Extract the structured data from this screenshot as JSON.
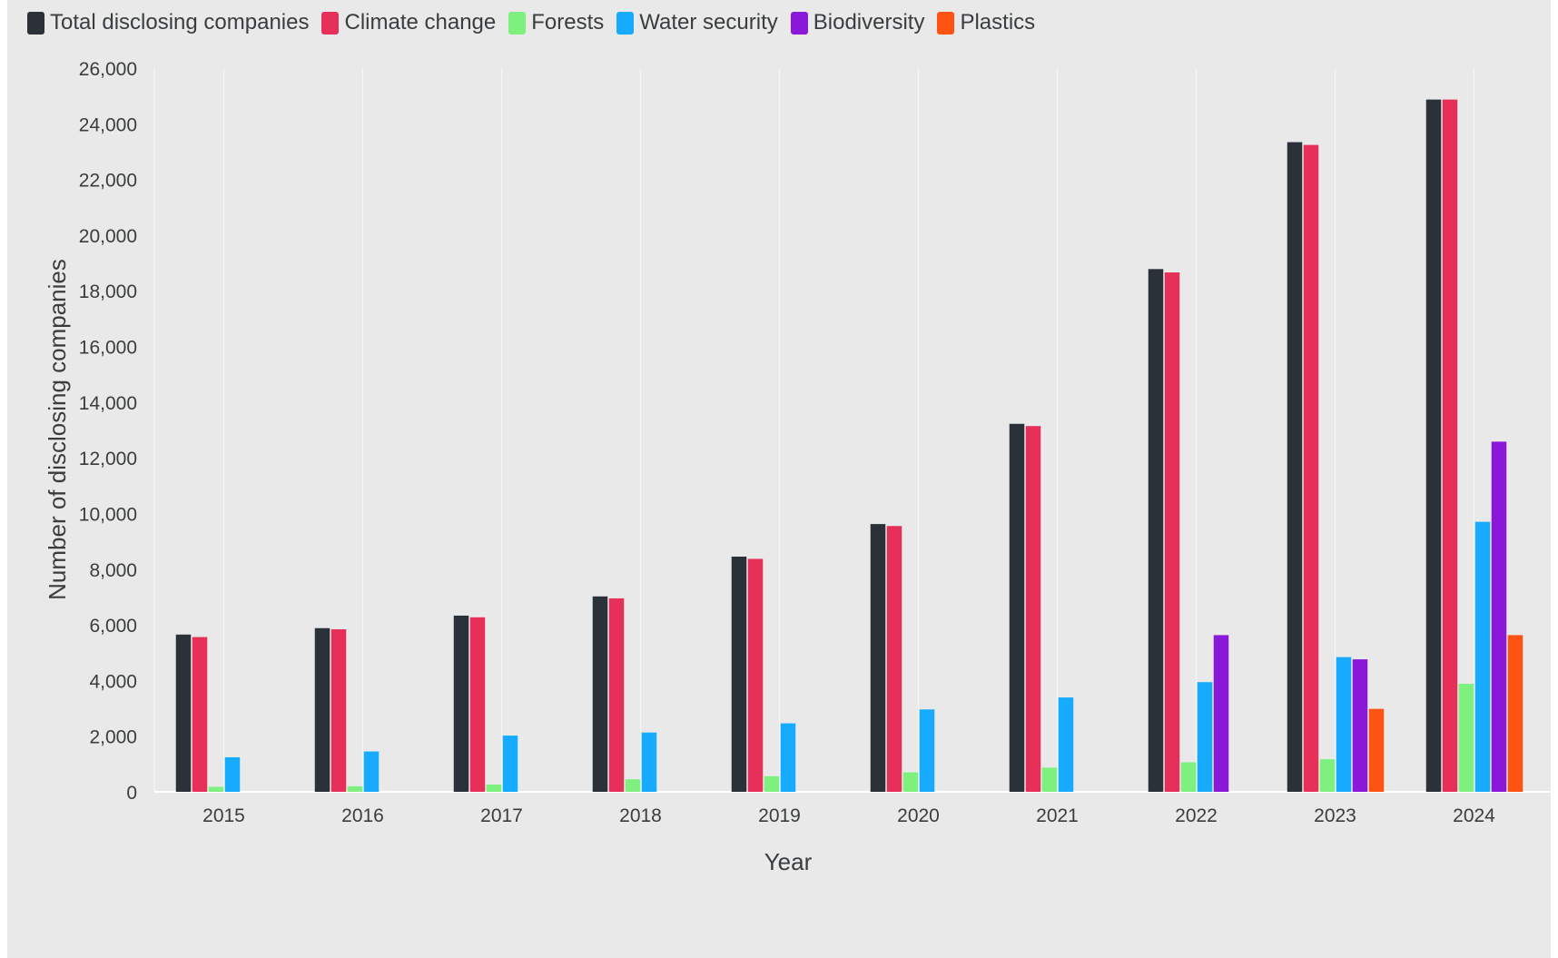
{
  "chart_data": {
    "type": "bar",
    "title": "",
    "xlabel": "Year",
    "ylabel": "Number of disclosing companies",
    "ylim": [
      0,
      26000
    ],
    "yticks": [
      0,
      2000,
      4000,
      6000,
      8000,
      10000,
      12000,
      14000,
      16000,
      18000,
      20000,
      22000,
      24000,
      26000
    ],
    "ytick_labels": [
      "0",
      "2,000",
      "4,000",
      "6,000",
      "8,000",
      "10,000",
      "12,000",
      "14,000",
      "16,000",
      "18,000",
      "20,000",
      "22,000",
      "24,000",
      "26,000"
    ],
    "grid": "vertical",
    "legend": "top-left",
    "categories": [
      "2015",
      "2016",
      "2017",
      "2018",
      "2019",
      "2020",
      "2021",
      "2022",
      "2023",
      "2024"
    ],
    "series": [
      {
        "name": "Total disclosing companies",
        "color": "#2a3138",
        "values": [
          5650,
          5880,
          6330,
          7020,
          8450,
          9620,
          13220,
          18780,
          23340,
          24870
        ]
      },
      {
        "name": "Climate change",
        "color": "#e6305a",
        "values": [
          5560,
          5840,
          6270,
          6950,
          8370,
          9550,
          13140,
          18660,
          23240,
          24870
        ]
      },
      {
        "name": "Forests",
        "color": "#7df07d",
        "values": [
          180,
          200,
          260,
          450,
          560,
          700,
          870,
          1060,
          1170,
          3880
        ]
      },
      {
        "name": "Water security",
        "color": "#16abff",
        "values": [
          1240,
          1450,
          2020,
          2130,
          2460,
          2960,
          3390,
          3940,
          4840,
          9700
        ]
      },
      {
        "name": "Biodiversity",
        "color": "#8b18d8",
        "values": [
          null,
          null,
          null,
          null,
          null,
          null,
          null,
          5630,
          4760,
          12580
        ]
      },
      {
        "name": "Plastics",
        "color": "#ff5314",
        "values": [
          null,
          null,
          null,
          null,
          null,
          null,
          null,
          null,
          2980,
          5630
        ]
      }
    ]
  }
}
